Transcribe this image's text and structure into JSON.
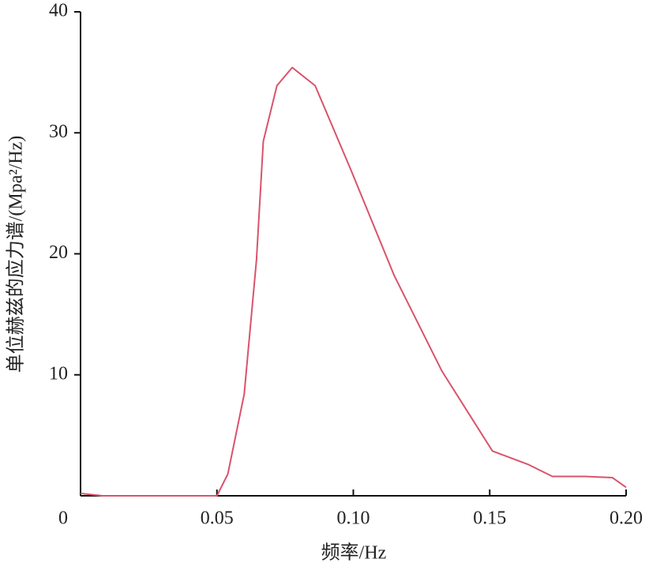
{
  "chart_data": {
    "type": "line",
    "xlabel": "频率/Hz",
    "ylabel": "单位赫兹的应力谱/(Mpa²/Hz)",
    "x": [
      0,
      0.008,
      0.03,
      0.05,
      0.054,
      0.06,
      0.0645,
      0.067,
      0.072,
      0.0776,
      0.086,
      0.099,
      0.115,
      0.1325,
      0.151,
      0.164,
      0.173,
      0.185,
      0.195,
      0.2
    ],
    "series": [
      {
        "color": "#d9536b",
        "values": [
          0.2,
          0,
          0,
          0,
          1.8,
          8.4,
          19.5,
          29.3,
          33.9,
          35.4,
          33.9,
          27.0,
          18.2,
          10.3,
          3.7,
          2.6,
          1.6,
          1.6,
          1.5,
          0.7
        ]
      }
    ],
    "xlim": [
      0,
      0.2
    ],
    "ylim": [
      0,
      40
    ],
    "xticks": [
      0,
      0.05,
      {
        "value": 0.1,
        "label": "0.10"
      },
      0.15,
      {
        "value": 0.2,
        "label": "0.20"
      }
    ],
    "yticks": [
      10,
      20,
      30,
      40
    ]
  }
}
